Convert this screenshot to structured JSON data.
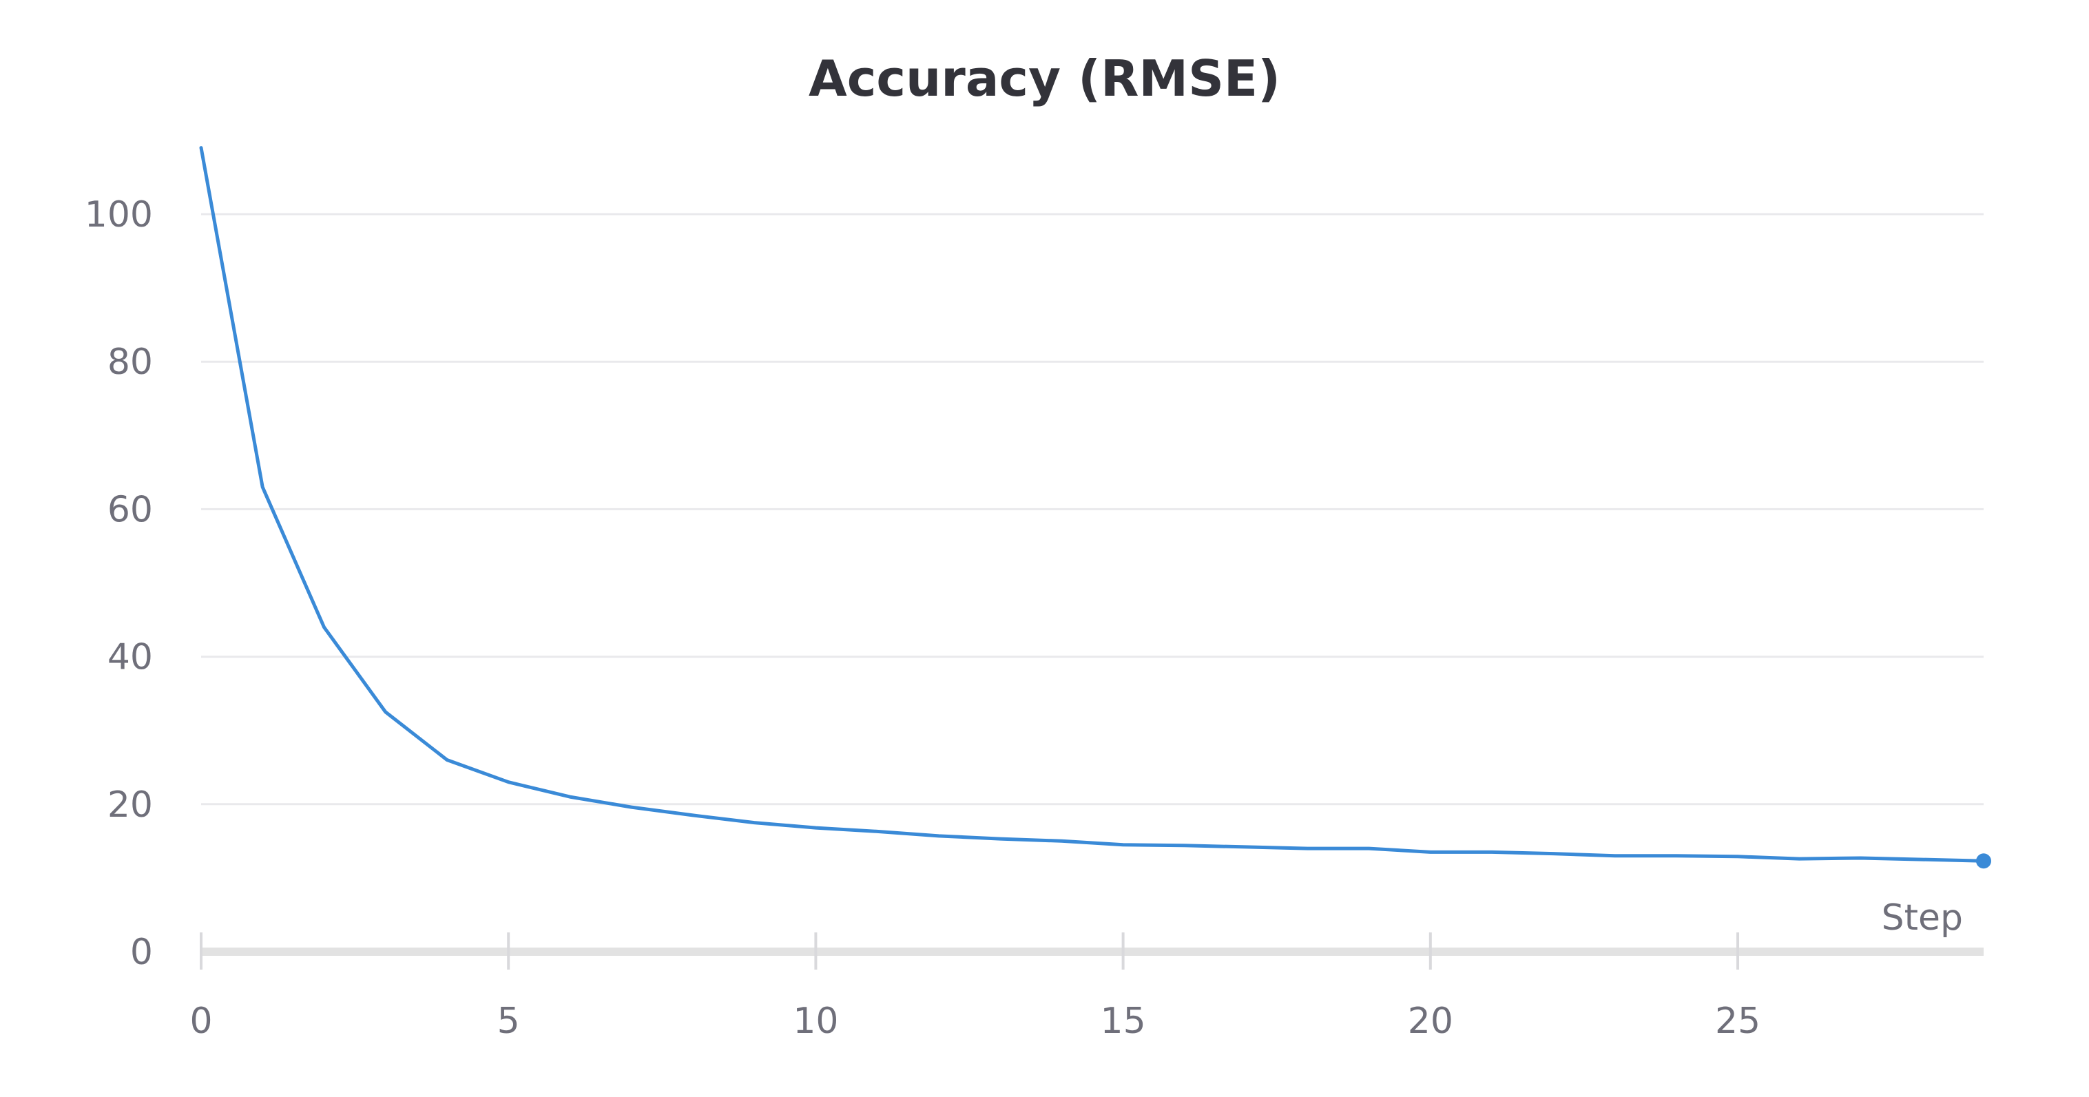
{
  "chart_data": {
    "type": "line",
    "title": "Accuracy (RMSE)",
    "xlabel": "Step",
    "ylabel": "",
    "xlim": [
      0,
      29
    ],
    "ylim": [
      0,
      110
    ],
    "x_ticks": [
      0,
      5,
      10,
      15,
      20,
      25
    ],
    "y_ticks": [
      0,
      20,
      40,
      60,
      80,
      100
    ],
    "grid": true,
    "legend": "none",
    "series": [
      {
        "color": "#3a8ad7",
        "end_marker": true,
        "x": [
          0,
          1,
          2,
          3,
          4,
          5,
          6,
          7,
          8,
          9,
          10,
          11,
          12,
          13,
          14,
          15,
          16,
          17,
          18,
          19,
          20,
          21,
          22,
          23,
          24,
          25,
          26,
          27,
          28,
          29
        ],
        "values": [
          109,
          63,
          44,
          32.5,
          26,
          23,
          21,
          19.6,
          18.5,
          17.5,
          16.8,
          16.3,
          15.7,
          15.3,
          15,
          14.5,
          14.4,
          14.2,
          14,
          14,
          13.5,
          13.5,
          13.3,
          13,
          13,
          12.9,
          12.6,
          12.7,
          12.5,
          12.3
        ]
      }
    ]
  }
}
